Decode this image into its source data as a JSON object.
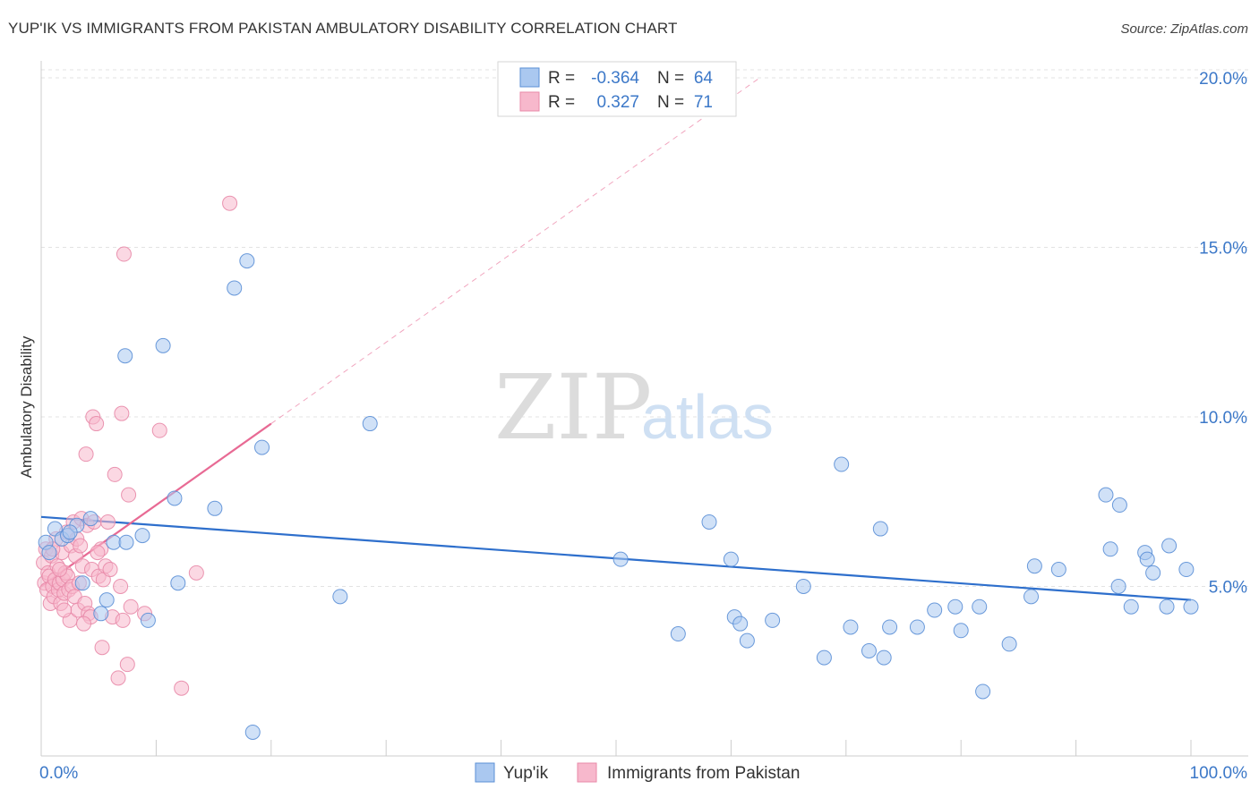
{
  "header": {
    "title": "YUP'IK VS IMMIGRANTS FROM PAKISTAN AMBULATORY DISABILITY CORRELATION CHART",
    "source": "Source: ZipAtlas.com"
  },
  "watermark": {
    "zip": "ZIP",
    "atlas": "atlas"
  },
  "colors": {
    "blue_fill": "#aac8f0",
    "blue_stroke": "#5b8fd6",
    "blue_line": "#2e6fcc",
    "pink_fill": "#f7b8cc",
    "pink_stroke": "#e88aa8",
    "pink_line": "#e86a94",
    "axis_text": "#3c78c8",
    "grid": "#e3e3e3"
  },
  "stats_legend": {
    "rows": [
      {
        "r_label": "R =",
        "r_value": "-0.364",
        "n_label": "N =",
        "n_value": "64"
      },
      {
        "r_label": "R =",
        "r_value": "0.327",
        "n_label": "N =",
        "n_value": "71"
      }
    ]
  },
  "chart_data": {
    "type": "scatter",
    "title": "YUP'IK VS IMMIGRANTS FROM PAKISTAN AMBULATORY DISABILITY CORRELATION CHART",
    "xlabel": "",
    "ylabel": "Ambulatory Disability",
    "xlim": [
      0,
      100
    ],
    "ylim": [
      0,
      20.5
    ],
    "x_tick_labels": [
      "0.0%",
      "100.0%"
    ],
    "y_ticks": [
      5,
      10,
      15,
      20
    ],
    "y_tick_labels": [
      "5.0%",
      "10.0%",
      "15.0%",
      "20.0%"
    ],
    "grid": true,
    "legend_position": "bottom",
    "series": [
      {
        "name": "Yup'ik",
        "color": "#aac8f0",
        "r": -0.364,
        "n": 64,
        "trend": {
          "x": [
            0,
            100
          ],
          "y": [
            7.05,
            4.6
          ],
          "dashed_extension": false
        },
        "points": [
          {
            "x": 0.4,
            "y": 6.3
          },
          {
            "x": 0.7,
            "y": 6.0
          },
          {
            "x": 1.2,
            "y": 6.7
          },
          {
            "x": 1.8,
            "y": 6.4
          },
          {
            "x": 2.3,
            "y": 6.5
          },
          {
            "x": 3.1,
            "y": 6.8
          },
          {
            "x": 3.6,
            "y": 5.1
          },
          {
            "x": 4.3,
            "y": 7.0
          },
          {
            "x": 5.2,
            "y": 4.2
          },
          {
            "x": 5.7,
            "y": 4.6
          },
          {
            "x": 6.3,
            "y": 6.3
          },
          {
            "x": 7.4,
            "y": 6.3
          },
          {
            "x": 7.3,
            "y": 11.8
          },
          {
            "x": 8.8,
            "y": 6.5
          },
          {
            "x": 9.3,
            "y": 4.0
          },
          {
            "x": 10.6,
            "y": 12.1
          },
          {
            "x": 11.6,
            "y": 7.6
          },
          {
            "x": 11.9,
            "y": 5.1
          },
          {
            "x": 15.1,
            "y": 7.3
          },
          {
            "x": 16.8,
            "y": 13.8
          },
          {
            "x": 17.9,
            "y": 14.6
          },
          {
            "x": 18.4,
            "y": 0.7
          },
          {
            "x": 19.2,
            "y": 9.1
          },
          {
            "x": 26.0,
            "y": 4.7
          },
          {
            "x": 28.6,
            "y": 9.8
          },
          {
            "x": 50.4,
            "y": 5.8
          },
          {
            "x": 55.4,
            "y": 3.6
          },
          {
            "x": 58.1,
            "y": 6.9
          },
          {
            "x": 60.0,
            "y": 5.8
          },
          {
            "x": 60.3,
            "y": 4.1
          },
          {
            "x": 60.8,
            "y": 3.9
          },
          {
            "x": 61.4,
            "y": 3.4
          },
          {
            "x": 63.6,
            "y": 4.0
          },
          {
            "x": 66.3,
            "y": 5.0
          },
          {
            "x": 68.1,
            "y": 2.9
          },
          {
            "x": 69.6,
            "y": 8.6
          },
          {
            "x": 70.4,
            "y": 3.8
          },
          {
            "x": 72.0,
            "y": 3.1
          },
          {
            "x": 73.0,
            "y": 6.7
          },
          {
            "x": 73.3,
            "y": 2.9
          },
          {
            "x": 73.8,
            "y": 3.8
          },
          {
            "x": 76.2,
            "y": 3.8
          },
          {
            "x": 77.7,
            "y": 4.3
          },
          {
            "x": 79.5,
            "y": 4.4
          },
          {
            "x": 80.0,
            "y": 3.7
          },
          {
            "x": 81.6,
            "y": 4.4
          },
          {
            "x": 81.9,
            "y": 1.9
          },
          {
            "x": 84.2,
            "y": 3.3
          },
          {
            "x": 86.1,
            "y": 4.7
          },
          {
            "x": 86.4,
            "y": 5.6
          },
          {
            "x": 88.5,
            "y": 5.5
          },
          {
            "x": 92.6,
            "y": 7.7
          },
          {
            "x": 93.0,
            "y": 6.1
          },
          {
            "x": 93.7,
            "y": 5.0
          },
          {
            "x": 93.8,
            "y": 7.4
          },
          {
            "x": 94.8,
            "y": 4.4
          },
          {
            "x": 96.0,
            "y": 6.0
          },
          {
            "x": 96.2,
            "y": 5.8
          },
          {
            "x": 96.7,
            "y": 5.4
          },
          {
            "x": 97.9,
            "y": 4.4
          },
          {
            "x": 98.1,
            "y": 6.2
          },
          {
            "x": 99.6,
            "y": 5.5
          },
          {
            "x": 100.0,
            "y": 4.4
          },
          {
            "x": 2.5,
            "y": 6.6
          }
        ]
      },
      {
        "name": "Immigrants from Pakistan",
        "color": "#f7b8cc",
        "r": 0.327,
        "n": 71,
        "trend": {
          "x": [
            0,
            20
          ],
          "y": [
            5.0,
            9.8
          ],
          "dashed_extension": true,
          "dashed_to": {
            "x": 62.5,
            "y": 20.0
          }
        },
        "points": [
          {
            "x": 0.2,
            "y": 5.7
          },
          {
            "x": 0.3,
            "y": 5.1
          },
          {
            "x": 0.4,
            "y": 6.1
          },
          {
            "x": 0.5,
            "y": 4.9
          },
          {
            "x": 0.6,
            "y": 5.4
          },
          {
            "x": 0.7,
            "y": 5.3
          },
          {
            "x": 0.8,
            "y": 4.5
          },
          {
            "x": 0.9,
            "y": 5.9
          },
          {
            "x": 1.0,
            "y": 5.0
          },
          {
            "x": 1.1,
            "y": 4.7
          },
          {
            "x": 1.2,
            "y": 5.2
          },
          {
            "x": 1.3,
            "y": 6.4
          },
          {
            "x": 1.4,
            "y": 5.6
          },
          {
            "x": 1.5,
            "y": 4.9
          },
          {
            "x": 1.6,
            "y": 5.1
          },
          {
            "x": 1.7,
            "y": 4.5
          },
          {
            "x": 1.8,
            "y": 6.0
          },
          {
            "x": 1.9,
            "y": 5.2
          },
          {
            "x": 2.0,
            "y": 4.8
          },
          {
            "x": 2.1,
            "y": 5.4
          },
          {
            "x": 2.2,
            "y": 6.6
          },
          {
            "x": 2.3,
            "y": 5.3
          },
          {
            "x": 2.4,
            "y": 4.9
          },
          {
            "x": 2.5,
            "y": 4.0
          },
          {
            "x": 2.6,
            "y": 6.2
          },
          {
            "x": 2.7,
            "y": 5.0
          },
          {
            "x": 2.8,
            "y": 6.9
          },
          {
            "x": 2.9,
            "y": 4.7
          },
          {
            "x": 3.0,
            "y": 5.9
          },
          {
            "x": 3.1,
            "y": 6.4
          },
          {
            "x": 3.2,
            "y": 4.3
          },
          {
            "x": 3.3,
            "y": 5.1
          },
          {
            "x": 3.4,
            "y": 6.2
          },
          {
            "x": 3.5,
            "y": 7.0
          },
          {
            "x": 3.6,
            "y": 5.6
          },
          {
            "x": 3.8,
            "y": 4.5
          },
          {
            "x": 3.9,
            "y": 8.9
          },
          {
            "x": 4.0,
            "y": 6.8
          },
          {
            "x": 4.1,
            "y": 4.2
          },
          {
            "x": 4.3,
            "y": 4.1
          },
          {
            "x": 4.4,
            "y": 5.5
          },
          {
            "x": 4.6,
            "y": 6.9
          },
          {
            "x": 4.5,
            "y": 10.0
          },
          {
            "x": 4.8,
            "y": 9.8
          },
          {
            "x": 5.0,
            "y": 5.3
          },
          {
            "x": 5.2,
            "y": 6.1
          },
          {
            "x": 5.3,
            "y": 3.2
          },
          {
            "x": 5.4,
            "y": 5.2
          },
          {
            "x": 5.6,
            "y": 5.6
          },
          {
            "x": 5.8,
            "y": 6.9
          },
          {
            "x": 6.0,
            "y": 5.5
          },
          {
            "x": 6.2,
            "y": 4.1
          },
          {
            "x": 6.4,
            "y": 8.3
          },
          {
            "x": 6.7,
            "y": 2.3
          },
          {
            "x": 6.9,
            "y": 5.0
          },
          {
            "x": 7.0,
            "y": 10.1
          },
          {
            "x": 7.1,
            "y": 4.0
          },
          {
            "x": 7.2,
            "y": 14.8
          },
          {
            "x": 7.5,
            "y": 2.7
          },
          {
            "x": 7.6,
            "y": 7.7
          },
          {
            "x": 7.8,
            "y": 4.4
          },
          {
            "x": 9.0,
            "y": 4.2
          },
          {
            "x": 10.3,
            "y": 9.6
          },
          {
            "x": 12.2,
            "y": 2.0
          },
          {
            "x": 13.5,
            "y": 5.4
          },
          {
            "x": 16.4,
            "y": 16.3
          },
          {
            "x": 1.6,
            "y": 5.5
          },
          {
            "x": 2.0,
            "y": 4.3
          },
          {
            "x": 3.7,
            "y": 3.9
          },
          {
            "x": 1.0,
            "y": 6.1
          },
          {
            "x": 4.9,
            "y": 6.0
          }
        ]
      }
    ]
  }
}
